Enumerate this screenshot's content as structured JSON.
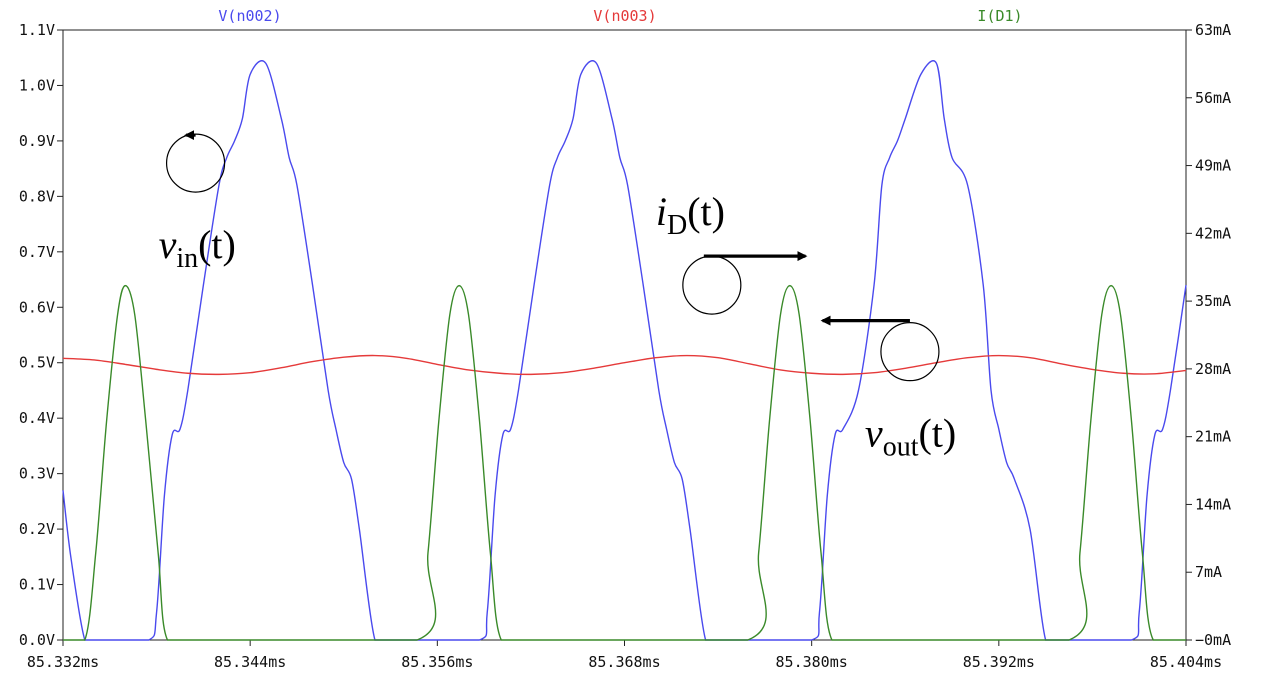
{
  "chart_data": {
    "type": "line",
    "x_unit": "ms",
    "xlim": [
      85.332,
      85.404
    ],
    "x_ticks": [
      "85.332ms",
      "85.344ms",
      "85.356ms",
      "85.368ms",
      "85.380ms",
      "85.392ms",
      "85.404ms"
    ],
    "y_left": {
      "ylim": [
        0,
        1.1
      ],
      "ticks": [
        "0.0V",
        "0.1V",
        "0.2V",
        "0.3V",
        "0.4V",
        "0.5V",
        "0.6V",
        "0.7V",
        "0.8V",
        "0.9V",
        "1.0V",
        "1.1V"
      ]
    },
    "y_right": {
      "ylim": [
        0,
        63
      ],
      "ticks": [
        "−0mA",
        "7mA",
        "14mA",
        "21mA",
        "28mA",
        "35mA",
        "42mA",
        "49mA",
        "56mA",
        "63mA"
      ]
    },
    "grid": false,
    "legend_position": "top",
    "colors": {
      "vin": "#4a4aee",
      "vout": "#e53a3a",
      "id": "#3a8a2a"
    },
    "series": [
      {
        "name": "V(n002)",
        "axis": "left",
        "color": "#4a4aee",
        "x": [
          85.332,
          85.3325,
          85.3334,
          85.3342,
          85.3347,
          85.3375,
          85.338,
          85.3385,
          85.339,
          85.3395,
          85.34,
          85.341,
          85.342,
          85.3425,
          85.343,
          85.3435,
          85.344,
          85.345,
          85.346,
          85.3465,
          85.347,
          85.348,
          85.349,
          85.3495,
          85.35,
          85.3505,
          85.351,
          85.352,
          85.353,
          85.354,
          85.3547,
          85.3587,
          85.3592,
          85.3597,
          85.3602,
          85.3607,
          85.3612,
          85.3622,
          85.3632,
          85.3637,
          85.3642,
          85.3647,
          85.3652,
          85.3662,
          85.3672,
          85.3677,
          85.3682,
          85.3692,
          85.3702,
          85.3707,
          85.3712,
          85.3717,
          85.3722,
          85.3732,
          85.3742,
          85.3752,
          85.3759,
          85.38,
          85.3805,
          85.381,
          85.3815,
          85.382,
          85.383,
          85.384,
          85.3845,
          85.385,
          85.3855,
          85.386,
          85.387,
          85.388,
          85.3885,
          85.389,
          85.39,
          85.391,
          85.3915,
          85.392,
          85.3925,
          85.393,
          85.394,
          85.395,
          85.396,
          85.3965,
          85.4005,
          85.401,
          85.4015,
          85.402,
          85.4025,
          85.403,
          85.404
        ],
        "values": [
          0.27,
          0.15,
          0.0,
          0.0,
          0.0,
          0.0,
          0.05,
          0.26,
          0.37,
          0.38,
          0.45,
          0.64,
          0.82,
          0.87,
          0.9,
          0.94,
          1.02,
          1.04,
          0.94,
          0.87,
          0.82,
          0.64,
          0.45,
          0.38,
          0.32,
          0.29,
          0.2,
          0.0,
          0.0,
          0.0,
          0.0,
          0.0,
          0.05,
          0.26,
          0.37,
          0.38,
          0.45,
          0.64,
          0.82,
          0.87,
          0.9,
          0.94,
          1.02,
          1.04,
          0.94,
          0.87,
          0.82,
          0.64,
          0.45,
          0.38,
          0.32,
          0.29,
          0.2,
          0.0,
          0.0,
          0.0,
          0.0,
          0.0,
          0.05,
          0.26,
          0.37,
          0.38,
          0.45,
          0.64,
          0.82,
          0.87,
          0.9,
          0.94,
          1.02,
          1.04,
          0.94,
          0.87,
          0.82,
          0.64,
          0.45,
          0.38,
          0.32,
          0.29,
          0.2,
          0.0,
          0.0,
          0.0,
          0.0,
          0.05,
          0.26,
          0.37,
          0.38,
          0.45,
          0.64
        ]
      },
      {
        "name": "V(n003)",
        "axis": "left",
        "color": "#e53a3a",
        "x": [
          85.332,
          85.334,
          85.336,
          85.338,
          85.34,
          85.342,
          85.344,
          85.346,
          85.348,
          85.35,
          85.352,
          85.354,
          85.356,
          85.358,
          85.36,
          85.362,
          85.364,
          85.366,
          85.368,
          85.37,
          85.372,
          85.374,
          85.376,
          85.378,
          85.38,
          85.382,
          85.384,
          85.386,
          85.388,
          85.39,
          85.392,
          85.394,
          85.396,
          85.398,
          85.4,
          85.402,
          85.404
        ],
        "values": [
          0.508,
          0.505,
          0.497,
          0.488,
          0.481,
          0.479,
          0.482,
          0.491,
          0.502,
          0.51,
          0.513,
          0.508,
          0.497,
          0.487,
          0.481,
          0.479,
          0.482,
          0.49,
          0.5,
          0.509,
          0.513,
          0.509,
          0.498,
          0.487,
          0.481,
          0.479,
          0.482,
          0.49,
          0.5,
          0.509,
          0.513,
          0.509,
          0.498,
          0.488,
          0.481,
          0.48,
          0.486
        ]
      },
      {
        "name": "I(D1)",
        "axis": "right",
        "color": "#3a8a2a",
        "x": [
          85.332,
          85.3334,
          85.3341,
          85.3348,
          85.3355,
          85.336,
          85.3366,
          85.3373,
          85.3381,
          85.3387,
          85.3408,
          85.3547,
          85.3554,
          85.3561,
          85.3568,
          85.3574,
          85.358,
          85.3587,
          85.3594,
          85.3601,
          85.3621,
          85.3759,
          85.3766,
          85.3773,
          85.378,
          85.3786,
          85.3792,
          85.3799,
          85.3806,
          85.3813,
          85.3833,
          85.3965,
          85.3972,
          85.3979,
          85.3986,
          85.3992,
          85.3998,
          85.4005,
          85.4012,
          85.4019,
          85.404
        ],
        "values": [
          0,
          0,
          9.0,
          22.7,
          33.6,
          36.6,
          33.6,
          22.7,
          9.0,
          0,
          0,
          0,
          9.0,
          22.7,
          33.6,
          36.6,
          33.6,
          22.7,
          9.0,
          0,
          0,
          0,
          9.0,
          22.7,
          33.6,
          36.6,
          33.6,
          22.7,
          9.0,
          0,
          0,
          0,
          9.0,
          22.7,
          33.6,
          36.6,
          33.6,
          22.7,
          9.0,
          0,
          0
        ]
      }
    ],
    "annotations": [
      {
        "id": "vin",
        "label_main": "v",
        "label_sub": "in",
        "label_tail": "(t)",
        "arrow": "left",
        "anchor_x": 85.3405,
        "anchor_v": 0.86,
        "arrow_to_x": 85.3399
      },
      {
        "id": "id",
        "label_main": "i",
        "label_sub": "D",
        "label_tail": "(t)",
        "arrow": "right",
        "anchor_x": 85.3736,
        "anchor_v": 0.64,
        "arrow_to_x": 85.3796
      },
      {
        "id": "vout",
        "label_main": "v",
        "label_sub": "out",
        "label_tail": "(t)",
        "arrow": "left",
        "anchor_x": 85.3863,
        "anchor_v": 0.52,
        "arrow_to_x": 85.3807
      }
    ]
  }
}
